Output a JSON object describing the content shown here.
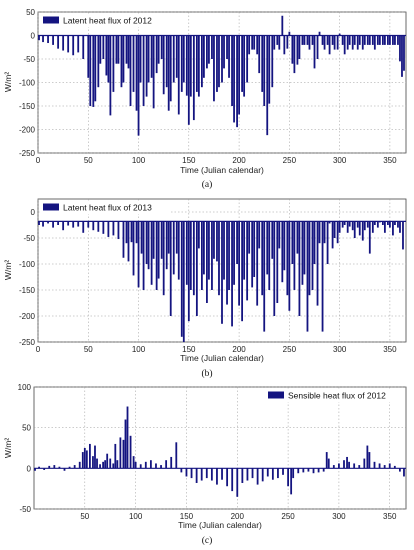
{
  "figure": {
    "bar_color": "#141480"
  },
  "chart_data": [
    {
      "type": "bar",
      "caption": "(a)",
      "legend": "Latent heat flux of 2012",
      "legend_position": "top-left",
      "xlabel": "Time (Julian calendar)",
      "ylabel": "W/m²",
      "xlim": [
        0,
        366
      ],
      "ylim": [
        -250,
        50
      ],
      "xticks": [
        0,
        50,
        100,
        150,
        200,
        250,
        300,
        350
      ],
      "yticks": [
        50,
        0,
        -50,
        -100,
        -150,
        -200,
        -250
      ],
      "grid": true,
      "baseline": 0,
      "series": [
        {
          "x": [
            1,
            5,
            10,
            15,
            20,
            25,
            30,
            35,
            40,
            45,
            50,
            52,
            55,
            57,
            60,
            62,
            65,
            68,
            70,
            72,
            75,
            78,
            80,
            83,
            85,
            88,
            90,
            92,
            95,
            98,
            100,
            102,
            105,
            108,
            110,
            113,
            115,
            118,
            120,
            123,
            125,
            128,
            130,
            132,
            135,
            138,
            140,
            143,
            145,
            148,
            150,
            152,
            155,
            158,
            160,
            163,
            165,
            168,
            170,
            173,
            175,
            178,
            180,
            183,
            185,
            188,
            190,
            193,
            195,
            198,
            200,
            203,
            205,
            208,
            210,
            213,
            215,
            218,
            220,
            223,
            225,
            228,
            230,
            233,
            235,
            238,
            240,
            243,
            245,
            248,
            250,
            253,
            255,
            258,
            260,
            263,
            265,
            268,
            270,
            273,
            275,
            278,
            280,
            283,
            285,
            288,
            290,
            293,
            295,
            298,
            300,
            303,
            305,
            308,
            310,
            313,
            315,
            318,
            320,
            323,
            325,
            328,
            330,
            333,
            335,
            338,
            340,
            343,
            345,
            348,
            350,
            353,
            355,
            358,
            360,
            362,
            364
          ],
          "values": [
            -10,
            -14,
            -16,
            -20,
            -28,
            -32,
            -36,
            -42,
            -36,
            -50,
            -90,
            -150,
            -152,
            -140,
            -110,
            -60,
            -50,
            -85,
            -100,
            -170,
            -120,
            -60,
            -60,
            -110,
            -100,
            -60,
            -70,
            -150,
            -120,
            -160,
            -213,
            -100,
            -150,
            -130,
            -100,
            -90,
            -155,
            -80,
            -60,
            -50,
            -125,
            -110,
            -160,
            -140,
            -100,
            -90,
            -168,
            -120,
            -100,
            -128,
            -190,
            -130,
            -180,
            -120,
            -130,
            -110,
            -90,
            -70,
            -60,
            -50,
            -140,
            -120,
            -110,
            -100,
            -70,
            -50,
            -90,
            -150,
            -185,
            -195,
            -168,
            -120,
            -130,
            -100,
            -40,
            -30,
            -30,
            -40,
            -80,
            -120,
            -150,
            -212,
            -145,
            -110,
            -30,
            -20,
            -30,
            42,
            -40,
            -28,
            8,
            -60,
            -80,
            -62,
            -50,
            -20,
            -20,
            -20,
            -30,
            -20,
            -70,
            -50,
            8,
            -20,
            -30,
            -20,
            -40,
            -20,
            -30,
            -30,
            4,
            -20,
            -40,
            -30,
            -20,
            -30,
            -20,
            -30,
            -20,
            -30,
            -20,
            -20,
            -20,
            -20,
            -30,
            -20,
            -20,
            -20,
            -20,
            -20,
            -20,
            -20,
            -20,
            -20,
            -55,
            -88,
            -75
          ]
        }
      ]
    },
    {
      "type": "bar",
      "caption": "(b)",
      "legend": "Latent heat flux of 2013",
      "legend_position": "top-left",
      "xlabel": "Time (Julian calendar)",
      "ylabel": "W/m²",
      "xlim": [
        0,
        366
      ],
      "ylim": [
        -250,
        25
      ],
      "xticks": [
        0,
        50,
        100,
        150,
        200,
        250,
        300,
        350
      ],
      "yticks": [
        0,
        -50,
        -100,
        -150,
        -200,
        -250
      ],
      "grid": true,
      "baseline": -18,
      "series": [
        {
          "x": [
            1,
            5,
            10,
            15,
            20,
            25,
            30,
            35,
            40,
            45,
            50,
            55,
            60,
            65,
            70,
            75,
            80,
            85,
            88,
            90,
            93,
            95,
            98,
            100,
            103,
            105,
            108,
            110,
            113,
            115,
            118,
            120,
            123,
            125,
            128,
            130,
            132,
            135,
            138,
            140,
            143,
            145,
            148,
            150,
            152,
            155,
            158,
            160,
            163,
            165,
            168,
            170,
            173,
            175,
            178,
            180,
            183,
            185,
            188,
            190,
            193,
            195,
            198,
            200,
            203,
            205,
            208,
            210,
            213,
            215,
            218,
            220,
            223,
            225,
            228,
            230,
            233,
            235,
            238,
            240,
            243,
            245,
            248,
            250,
            253,
            255,
            258,
            260,
            263,
            265,
            268,
            270,
            273,
            275,
            278,
            280,
            283,
            285,
            288,
            290,
            293,
            295,
            298,
            300,
            303,
            305,
            308,
            310,
            313,
            315,
            318,
            320,
            323,
            325,
            328,
            330,
            333,
            335,
            338,
            340,
            343,
            345,
            348,
            350,
            353,
            355,
            358,
            360,
            363
          ],
          "values": [
            -25,
            -28,
            -22,
            -30,
            -25,
            -35,
            -26,
            -30,
            -28,
            -40,
            -30,
            -35,
            -38,
            -42,
            -48,
            -45,
            -52,
            -88,
            -60,
            -95,
            -58,
            -122,
            -60,
            -145,
            -80,
            -150,
            -100,
            -110,
            -140,
            -90,
            -150,
            -128,
            -90,
            -160,
            -110,
            -80,
            -200,
            -120,
            -80,
            -130,
            -240,
            -250,
            -140,
            -210,
            -150,
            -160,
            -200,
            -70,
            -150,
            -120,
            -175,
            -130,
            -150,
            -90,
            -95,
            -160,
            -215,
            -130,
            -178,
            -150,
            -220,
            -140,
            -100,
            -180,
            -210,
            -130,
            -170,
            -80,
            -145,
            -125,
            -180,
            -70,
            -160,
            -230,
            -120,
            -150,
            -90,
            -200,
            -175,
            -70,
            -135,
            -112,
            -160,
            -190,
            -100,
            -150,
            -80,
            -200,
            -140,
            -120,
            -230,
            -160,
            -150,
            -100,
            -180,
            -60,
            -230,
            -60,
            -100,
            -22,
            -70,
            -50,
            -60,
            -40,
            -30,
            -25,
            -40,
            -28,
            -35,
            -50,
            -30,
            -45,
            -55,
            -35,
            -30,
            -80,
            -40,
            -25,
            -30,
            -20,
            -25,
            -40,
            -25,
            -30,
            -45,
            -25,
            -30,
            -40,
            -72
          ]
        }
      ]
    },
    {
      "type": "bar",
      "caption": "(c)",
      "legend": "Sensible heat flux of 2012",
      "legend_position": "top-right",
      "xlabel": "Time (Julian calendar)",
      "ylabel": "W/m²",
      "xlim": [
        0,
        366
      ],
      "ylim": [
        -50,
        100
      ],
      "xticks": [
        50,
        100,
        150,
        200,
        250,
        300,
        350
      ],
      "yticks": [
        100,
        50,
        0,
        -50
      ],
      "grid": true,
      "baseline": 0,
      "series": [
        {
          "x": [
            1,
            5,
            10,
            15,
            20,
            25,
            30,
            35,
            40,
            45,
            48,
            50,
            52,
            55,
            58,
            60,
            62,
            65,
            68,
            70,
            72,
            75,
            78,
            80,
            82,
            85,
            88,
            90,
            92,
            95,
            98,
            100,
            105,
            110,
            115,
            120,
            125,
            130,
            135,
            140,
            145,
            150,
            155,
            160,
            165,
            170,
            175,
            180,
            185,
            190,
            195,
            200,
            205,
            210,
            215,
            220,
            225,
            230,
            235,
            240,
            245,
            250,
            253,
            255,
            260,
            265,
            270,
            275,
            280,
            285,
            288,
            290,
            295,
            300,
            305,
            308,
            310,
            315,
            320,
            325,
            328,
            330,
            335,
            340,
            345,
            350,
            355,
            360,
            364
          ],
          "values": [
            -3,
            2,
            -2,
            3,
            4,
            2,
            -3,
            2,
            4,
            8,
            20,
            25,
            22,
            30,
            15,
            28,
            12,
            5,
            8,
            10,
            18,
            12,
            6,
            30,
            10,
            38,
            35,
            60,
            76,
            40,
            15,
            8,
            5,
            8,
            10,
            6,
            4,
            10,
            14,
            32,
            -5,
            -10,
            -12,
            -18,
            -15,
            -12,
            -15,
            -20,
            -14,
            -22,
            -28,
            -35,
            -18,
            -15,
            -12,
            -20,
            -16,
            -10,
            -14,
            -12,
            -8,
            -22,
            -32,
            -12,
            -6,
            -5,
            -4,
            -6,
            -5,
            -4,
            20,
            12,
            4,
            6,
            10,
            14,
            8,
            6,
            4,
            12,
            28,
            20,
            8,
            6,
            4,
            6,
            3,
            -4,
            -10
          ]
        }
      ]
    }
  ]
}
